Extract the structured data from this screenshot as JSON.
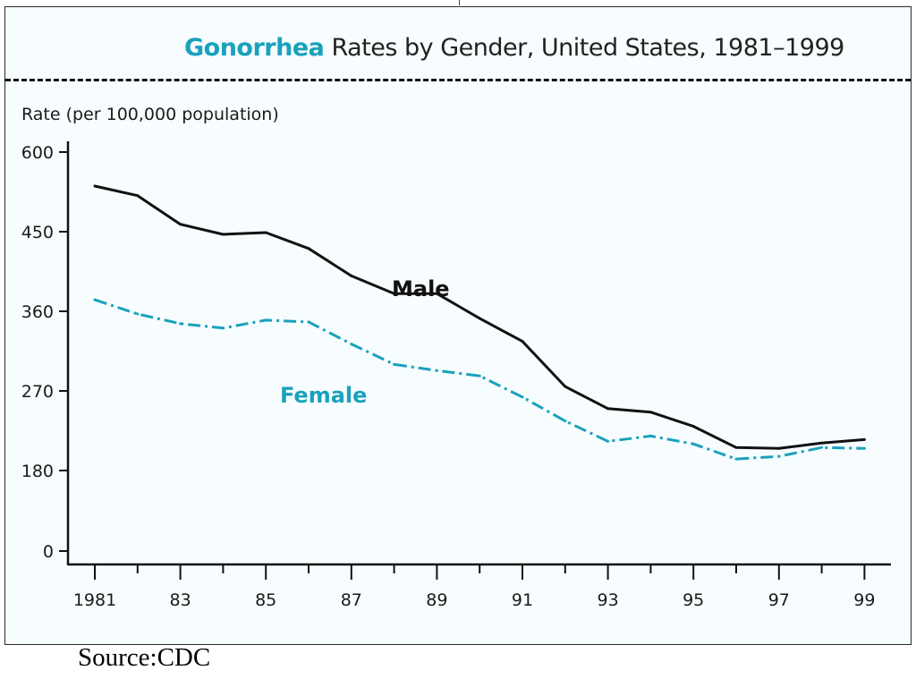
{
  "title": {
    "highlight": "Gonorrhea",
    "rest": " Rates by Gender, United States, 1981–1999"
  },
  "source": "Source:CDC",
  "colors": {
    "male": "#111111",
    "female": "#1aa1bd",
    "title_highlight": "#1aa1bd",
    "background": "#f7fdfe"
  },
  "chart_data": {
    "type": "line",
    "title": "Gonorrhea Rates by Gender, United States, 1981–1999",
    "ylabel": "Rate (per 100,000 population)",
    "xlabel": "",
    "x": [
      1981,
      1982,
      1983,
      1984,
      1985,
      1986,
      1987,
      1988,
      1989,
      1990,
      1991,
      1992,
      1993,
      1994,
      1995,
      1996,
      1997,
      1998,
      1999
    ],
    "y_ticks": [
      0,
      180,
      270,
      360,
      450,
      600
    ],
    "y_tick_labels": [
      "0",
      "180",
      "270",
      "360",
      "450",
      "600"
    ],
    "x_tick_labels": [
      "1981",
      "83",
      "85",
      "87",
      "89",
      "91",
      "93",
      "95",
      "97",
      "99"
    ],
    "x_tick_label_years": [
      1981,
      1983,
      1985,
      1987,
      1989,
      1991,
      1993,
      1995,
      1997,
      1999
    ],
    "series": [
      {
        "name": "Male",
        "style": "solid",
        "values": [
          536,
          518,
          464,
          447,
          449,
          431,
          400,
          380,
          380,
          352,
          326,
          275,
          250,
          246,
          230,
          206,
          205,
          211,
          215
        ]
      },
      {
        "name": "Female",
        "style": "dashdot",
        "values": [
          373,
          357,
          346,
          341,
          350,
          348,
          323,
          300,
          293,
          287,
          263,
          236,
          213,
          219,
          210,
          193,
          196,
          206,
          205
        ]
      }
    ],
    "legend": "inline labels",
    "grid": false
  }
}
